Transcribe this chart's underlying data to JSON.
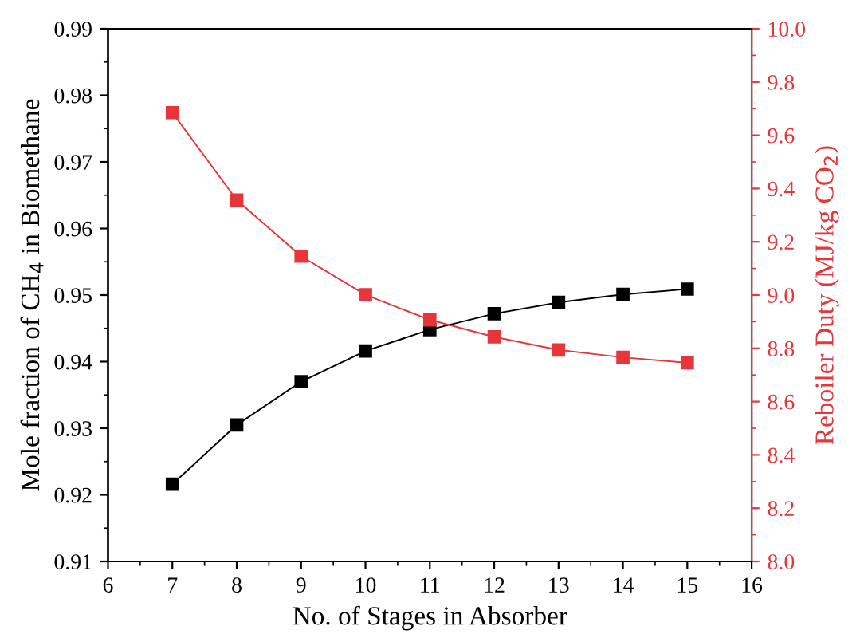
{
  "chart_data": {
    "type": "line",
    "xlabel": "No. of Stages in Absorber",
    "ylabel": "Mole fraction of CH$_{4}$ in Biomethane",
    "y2label": "Reboiler Duty (MJ/kg CO$_{2}$)",
    "x": [
      7,
      8,
      9,
      10,
      11,
      12,
      13,
      14,
      15
    ],
    "series": [
      {
        "color": "#000000",
        "values": [
          0.9216,
          0.9305,
          0.937,
          0.9416,
          0.9448,
          0.9472,
          0.9489,
          0.9501,
          0.9509
        ]
      },
      {
        "color": "#e8353a",
        "axis": "y2",
        "values": [
          9.685,
          9.357,
          9.146,
          9.001,
          8.907,
          8.843,
          8.794,
          8.766,
          8.746
        ]
      }
    ],
    "xlim": [
      6,
      16
    ],
    "xticks": [
      6,
      7,
      8,
      9,
      10,
      11,
      12,
      13,
      14,
      15,
      16
    ],
    "ylim": [
      0.91,
      0.99
    ],
    "yticks": [
      0.91,
      0.92,
      0.93,
      0.94,
      0.95,
      0.96,
      0.97,
      0.98,
      0.99
    ],
    "y2lim": [
      8.0,
      10.0
    ],
    "y2ticks": [
      {
        "value": 8,
        "label": "8.0"
      },
      8.2,
      8.4,
      8.6,
      8.8,
      {
        "value": 9,
        "label": "9.0"
      },
      9.2,
      9.4,
      9.6,
      9.8,
      {
        "value": 10,
        "label": "10.0"
      }
    ],
    "marker": "square",
    "line_style": "solid",
    "grid": false,
    "legend": false
  }
}
